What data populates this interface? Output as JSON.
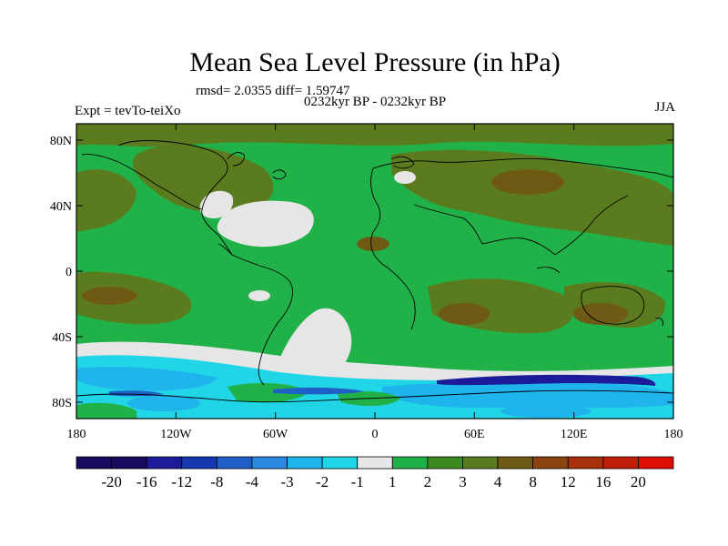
{
  "title": "Mean Sea Level Pressure (in hPa)",
  "stats": "rmsd= 2.0355 diff= 1.59747",
  "subtitle": "0232kyr BP - 0232kyr BP",
  "left_label": "Expt = tevTo-teiXo",
  "right_label": "JJA",
  "map": {
    "lat_ticks": [
      {
        "value": 80,
        "label": "80N"
      },
      {
        "value": 40,
        "label": "40N"
      },
      {
        "value": 0,
        "label": "0"
      },
      {
        "value": -40,
        "label": "40S"
      },
      {
        "value": -80,
        "label": "80S"
      }
    ],
    "lon_ticks": [
      {
        "value": -180,
        "label": "180"
      },
      {
        "value": -120,
        "label": "120W"
      },
      {
        "value": -60,
        "label": "60W"
      },
      {
        "value": 0,
        "label": "0"
      },
      {
        "value": 60,
        "label": "60E"
      },
      {
        "value": 120,
        "label": "120E"
      },
      {
        "value": 180,
        "label": "180"
      }
    ]
  },
  "colorbar": {
    "colors": [
      "#1a0a5e",
      "#1c1c9a",
      "#1638b0",
      "#1e5fc8",
      "#2a8ae0",
      "#20b4ec",
      "#20d6e6",
      "#e6e6e6",
      "#20b248",
      "#3c8a22",
      "#5a7c1e",
      "#6e5a14",
      "#8a4410",
      "#a8300c",
      "#c01e0a",
      "#dc0e06"
    ],
    "labels": [
      "-20",
      "-16",
      "-12",
      "-8",
      "-4",
      "-3",
      "-2",
      "-1",
      "1",
      "2",
      "3",
      "4",
      "8",
      "12",
      "16",
      "20"
    ]
  }
}
